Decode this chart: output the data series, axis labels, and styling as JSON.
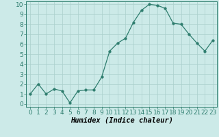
{
  "x": [
    0,
    1,
    2,
    3,
    4,
    5,
    6,
    7,
    8,
    9,
    10,
    11,
    12,
    13,
    14,
    15,
    16,
    17,
    18,
    19,
    20,
    21,
    22,
    23
  ],
  "y": [
    1.0,
    2.0,
    1.0,
    1.5,
    1.3,
    0.1,
    1.3,
    1.4,
    1.4,
    2.7,
    5.3,
    6.1,
    6.6,
    8.2,
    9.4,
    10.0,
    9.9,
    9.6,
    8.1,
    8.0,
    7.0,
    6.1,
    5.3,
    6.4
  ],
  "line_color": "#2e7d6e",
  "marker": "o",
  "marker_size": 2.5,
  "bg_color": "#cceae8",
  "grid_color": "#aad0cc",
  "xlabel": "Humidex (Indice chaleur)",
  "ylim": [
    -0.3,
    10.3
  ],
  "xlim": [
    -0.5,
    23.5
  ],
  "xticks": [
    0,
    1,
    2,
    3,
    4,
    5,
    6,
    7,
    8,
    9,
    10,
    11,
    12,
    13,
    14,
    15,
    16,
    17,
    18,
    19,
    20,
    21,
    22,
    23
  ],
  "yticks": [
    0,
    1,
    2,
    3,
    4,
    5,
    6,
    7,
    8,
    9,
    10
  ],
  "tick_fontsize": 6.5,
  "xlabel_fontsize": 7.5
}
